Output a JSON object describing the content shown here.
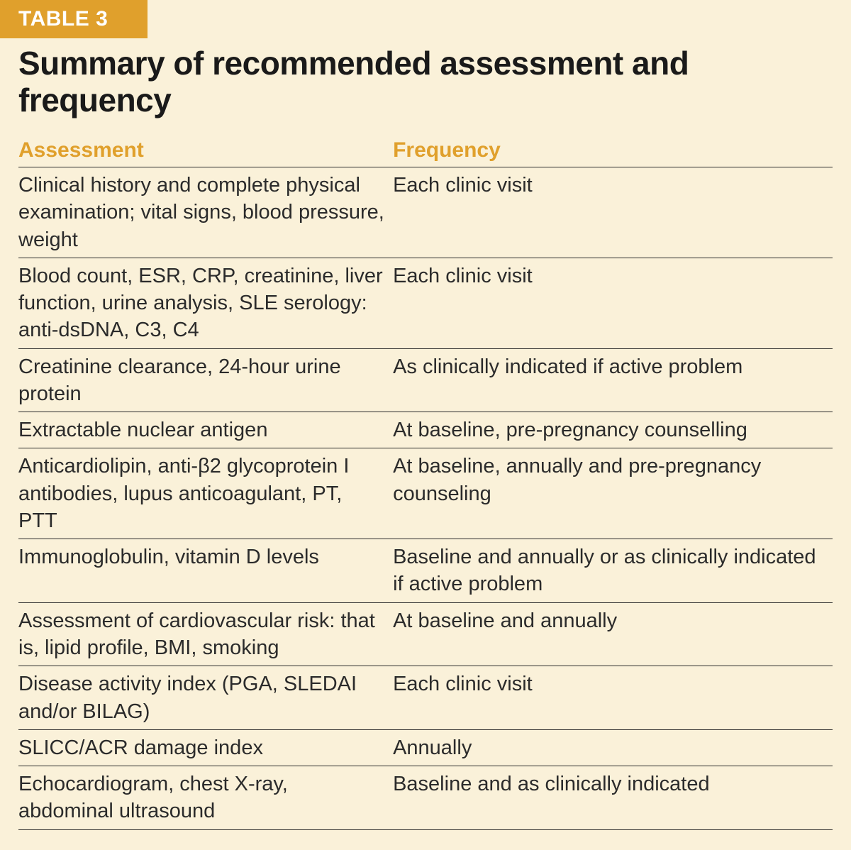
{
  "colors": {
    "panel_bg": "#faf1d9",
    "badge_bg": "#e0a02c",
    "badge_text": "#ffffff",
    "title_text": "#1a1a1a",
    "header_text": "#e0a02c",
    "body_text": "#2b2b2b",
    "row_border": "#2b2b2b"
  },
  "typography": {
    "badge_fontsize": 30,
    "title_fontsize": 46,
    "header_fontsize": 30,
    "body_fontsize": 29,
    "row_border_width": 1
  },
  "badge": "TABLE 3",
  "title": "Summary of recommended assessment and frequency",
  "columns": {
    "assessment": "Assessment",
    "frequency": "Frequency"
  },
  "rows": [
    {
      "assessment": "Clinical history and complete physical examination; vital signs, blood pressure, weight",
      "frequency": "Each clinic visit"
    },
    {
      "assessment": "Blood count, ESR, CRP, creatinine, liver function, urine analysis, SLE serology: anti-dsDNA, C3, C4",
      "frequency": "Each clinic visit"
    },
    {
      "assessment": "Creatinine clearance, 24-hour urine protein",
      "frequency": "As clinically indicated if active problem"
    },
    {
      "assessment": "Extractable nuclear antigen",
      "frequency": "At baseline, pre-pregnancy counselling"
    },
    {
      "assessment": "Anticardiolipin, anti-β2 glycoprotein I antibodies, lupus anticoagulant, PT, PTT",
      "frequency": "At baseline, annually and pre-pregnancy counseling"
    },
    {
      "assessment": "Immunoglobulin, vitamin D levels",
      "frequency": "Baseline and annually or as clinically indicated if active problem"
    },
    {
      "assessment": "Assessment of cardiovascular risk: that is, lipid profile, BMI, smoking",
      "frequency": "At baseline and annually"
    },
    {
      "assessment": "Disease activity index (PGA, SLEDAI and/or BILAG)",
      "frequency": "Each clinic visit"
    },
    {
      "assessment": "SLICC/ACR damage index",
      "frequency": "Annually"
    },
    {
      "assessment": "Echocardiogram, chest X-ray, abdominal ultrasound",
      "frequency": "Baseline and as clinically indicated"
    }
  ]
}
